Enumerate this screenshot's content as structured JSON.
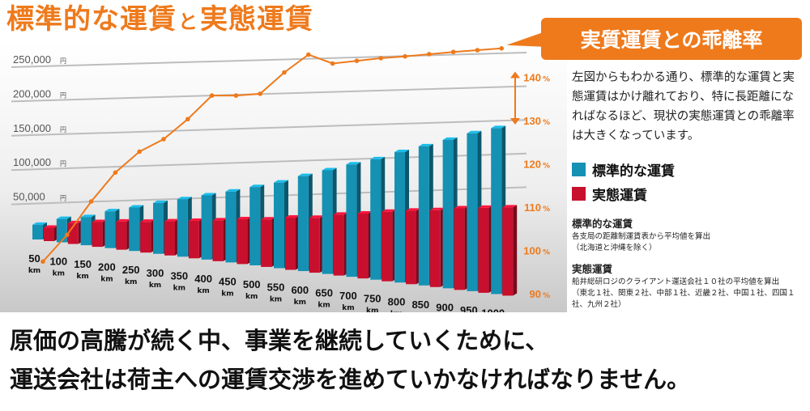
{
  "title": {
    "main": "標準的な運賃",
    "particle": "と",
    "rest": "実態運賃"
  },
  "badge": {
    "label": "実質運賃との乖離率"
  },
  "description": "左図からもわかる通り、標準的な運賃と実態運賃はかけ離れており、特に長距離になればなるほど、現状の実態運賃との乖離率は大きくなっています。",
  "legend": [
    {
      "label": "標準的な運賃",
      "color": "#1591b4"
    },
    {
      "label": "実態運賃",
      "color": "#c8102e"
    }
  ],
  "notes": [
    {
      "heading": "標準的な運賃",
      "text": "各支局の距離制運賃表から平均値を算出\n（北海道と沖縄を除く）"
    },
    {
      "heading": "実態運賃",
      "text": "船井総研ロジのクライアント運送会社１０社の平均値を算出\n（東北１社、関東２社、中部１社、近畿２社、中国１社、四国１社、九州２社）"
    }
  ],
  "bottom": {
    "line1": "原価の高騰が続く中、事業を継続していくために、",
    "line2": "運送会社は荷主への運賃交渉を進めていかなければなりません。"
  },
  "chart_data": {
    "type": "bar",
    "categories": [
      "50",
      "100",
      "150",
      "200",
      "250",
      "300",
      "350",
      "400",
      "450",
      "500",
      "550",
      "600",
      "650",
      "700",
      "750",
      "800",
      "850",
      "900",
      "950",
      "1000"
    ],
    "category_unit": "km",
    "y_ticks": [
      "50,000",
      "100,000",
      "150,000",
      "200,000",
      "250,000"
    ],
    "y_tick_values": [
      50000,
      100000,
      150000,
      200000,
      250000
    ],
    "y_unit": "円",
    "ylim": [
      0,
      270000
    ],
    "y2_ticks": [
      "90",
      "100",
      "110",
      "120",
      "130",
      "140"
    ],
    "y2_tick_values": [
      90,
      100,
      110,
      120,
      130,
      140
    ],
    "y2_unit": "%",
    "y2lim": [
      90,
      146
    ],
    "series": [
      {
        "name": "標準的な運賃",
        "type": "bar",
        "color": "#1591b4",
        "values": [
          22000,
          35000,
          42000,
          55000,
          65000,
          76000,
          86000,
          96000,
          106000,
          117000,
          128000,
          142000,
          155000,
          168000,
          180000,
          195000,
          208000,
          222000,
          236000,
          248000
        ]
      },
      {
        "name": "実態運賃",
        "type": "bar",
        "color": "#c8102e",
        "values": [
          20000,
          31000,
          37000,
          42000,
          46000,
          51000,
          56000,
          61000,
          67000,
          71000,
          78000,
          82000,
          91000,
          97000,
          104000,
          110000,
          115000,
          122000,
          127000,
          132000
        ]
      },
      {
        "type": "line",
        "color": "#ee7a1c",
        "axis": "right",
        "values": [
          102.5,
          108.5,
          116,
          122.5,
          127.2,
          130,
          134.5,
          139.8,
          139.8,
          140.2,
          145,
          149,
          147,
          147.6,
          148.2,
          148.6,
          149.1,
          149.6,
          150,
          150.4
        ]
      }
    ],
    "grid": true,
    "annotation": "arrow between 140% and 130% on right axis"
  }
}
